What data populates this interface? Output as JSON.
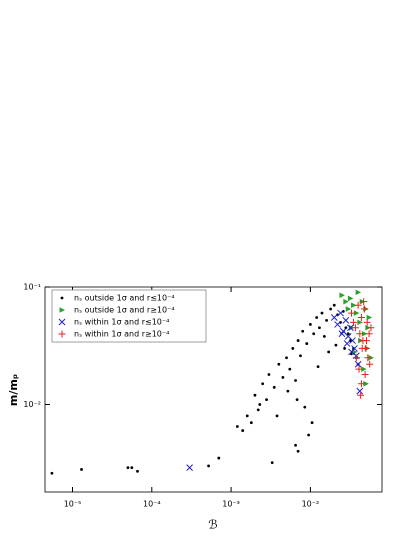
{
  "chart_data": {
    "type": "scatter",
    "xlabel": "ℬ",
    "ylabel": "m/mₚ",
    "xscale": "log",
    "yscale": "log",
    "xlim": [
      4.5e-06,
      0.08
    ],
    "ylim": [
      0.0018,
      0.1
    ],
    "xticks": [
      {
        "value": 1e-05,
        "label": "10⁻⁵"
      },
      {
        "value": 0.0001,
        "label": "10⁻⁴"
      },
      {
        "value": 0.001,
        "label": "10⁻³"
      },
      {
        "value": 0.01,
        "label": "10⁻²"
      }
    ],
    "yticks": [
      {
        "value": 0.01,
        "label": "10⁻²"
      },
      {
        "value": 0.1,
        "label": "10⁻¹"
      }
    ],
    "legend": "upper left",
    "series": [
      {
        "name": "nₛ outside 1σ and r≤10⁻⁴",
        "color": "#000000",
        "marker": "dot",
        "x": [
          5.5e-06,
          1.3e-05,
          5e-05,
          5.6e-05,
          6.6e-05,
          0.00052,
          0.0007,
          0.0033,
          0.0012,
          0.0014,
          0.0016,
          0.0018,
          0.002,
          0.0022,
          0.0025,
          0.0028,
          0.003,
          0.0035,
          0.004,
          0.0045,
          0.005,
          0.0055,
          0.006,
          0.0065,
          0.007,
          0.0075,
          0.008,
          0.009,
          0.01,
          0.011,
          0.012,
          0.013,
          0.014,
          0.015,
          0.016,
          0.018,
          0.02,
          0.022,
          0.024,
          0.026,
          0.028,
          0.03,
          0.032,
          0.035,
          0.038,
          0.04,
          0.0023,
          0.0038,
          0.0052,
          0.0068,
          0.0085,
          0.0105,
          0.0125,
          0.017,
          0.021,
          0.027,
          0.033,
          0.0065,
          0.007,
          0.0095
        ],
        "values": [
          0.0026,
          0.0028,
          0.0029,
          0.0029,
          0.0027,
          0.003,
          0.0035,
          0.0032,
          0.0065,
          0.006,
          0.008,
          0.007,
          0.012,
          0.009,
          0.015,
          0.011,
          0.018,
          0.014,
          0.022,
          0.017,
          0.025,
          0.02,
          0.03,
          0.016,
          0.035,
          0.026,
          0.042,
          0.033,
          0.048,
          0.04,
          0.055,
          0.045,
          0.06,
          0.038,
          0.052,
          0.065,
          0.07,
          0.058,
          0.05,
          0.062,
          0.045,
          0.04,
          0.035,
          0.03,
          0.025,
          0.022,
          0.01,
          0.008,
          0.013,
          0.011,
          0.0095,
          0.007,
          0.021,
          0.028,
          0.032,
          0.03,
          0.027,
          0.0045,
          0.004,
          0.0055
        ]
      },
      {
        "name": "nₛ outside 1σ and r≥10⁻⁴",
        "color": "#2ca02c",
        "marker": "triangle",
        "x": [
          0.025,
          0.028,
          0.03,
          0.032,
          0.035,
          0.038,
          0.04,
          0.042,
          0.045,
          0.048,
          0.05,
          0.052,
          0.055,
          0.058,
          0.033,
          0.043,
          0.047,
          0.053,
          0.036,
          0.05
        ],
        "values": [
          0.085,
          0.075,
          0.065,
          0.08,
          0.07,
          0.06,
          0.09,
          0.05,
          0.075,
          0.04,
          0.065,
          0.03,
          0.055,
          0.025,
          0.045,
          0.035,
          0.02,
          0.045,
          0.028,
          0.015
        ]
      },
      {
        "name": "nₛ within 1σ and r≤10⁻⁴",
        "color": "#1f1fd0",
        "marker": "x",
        "x": [
          0.0003,
          0.02,
          0.022,
          0.024,
          0.026,
          0.028,
          0.03,
          0.032,
          0.034,
          0.036,
          0.038,
          0.025,
          0.029,
          0.033,
          0.04,
          0.042
        ],
        "values": [
          0.0029,
          0.055,
          0.048,
          0.06,
          0.042,
          0.052,
          0.038,
          0.045,
          0.035,
          0.03,
          0.026,
          0.04,
          0.033,
          0.028,
          0.022,
          0.013
        ]
      },
      {
        "name": "nₛ within 1σ and r≥10⁻⁴",
        "color": "#e8221b",
        "marker": "plus",
        "x": [
          0.033,
          0.035,
          0.037,
          0.04,
          0.042,
          0.044,
          0.046,
          0.048,
          0.05,
          0.052,
          0.055,
          0.058,
          0.038,
          0.041,
          0.045,
          0.049,
          0.053,
          0.043,
          0.047,
          0.051,
          0.044,
          0.056
        ],
        "values": [
          0.06,
          0.05,
          0.045,
          0.07,
          0.04,
          0.055,
          0.035,
          0.065,
          0.03,
          0.05,
          0.04,
          0.045,
          0.025,
          0.02,
          0.03,
          0.018,
          0.025,
          0.012,
          0.075,
          0.035,
          0.015,
          0.022
        ]
      }
    ]
  }
}
